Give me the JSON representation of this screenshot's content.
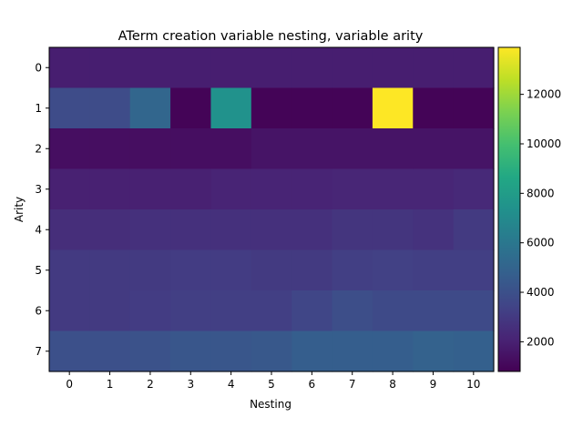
{
  "chart_data": {
    "type": "heatmap",
    "title": "ATerm creation variable nesting, variable arity",
    "xlabel": "Nesting",
    "ylabel": "Arity",
    "x_categories": [
      "0",
      "1",
      "2",
      "3",
      "4",
      "5",
      "6",
      "7",
      "8",
      "9",
      "10"
    ],
    "y_categories": [
      "0",
      "1",
      "2",
      "3",
      "4",
      "5",
      "6",
      "7"
    ],
    "values": [
      [
        1900,
        1900,
        1900,
        1900,
        1900,
        1900,
        1900,
        1900,
        1900,
        1900,
        1900
      ],
      [
        3800,
        3800,
        5100,
        900,
        7400,
        900,
        900,
        900,
        13900,
        900,
        900
      ],
      [
        1300,
        1300,
        1300,
        1300,
        1300,
        1500,
        1500,
        1500,
        1500,
        1500,
        1500
      ],
      [
        2000,
        2000,
        2000,
        2000,
        2100,
        2100,
        2100,
        2200,
        2200,
        2200,
        2300
      ],
      [
        2500,
        2500,
        2600,
        2600,
        2600,
        2600,
        2600,
        2800,
        2800,
        2700,
        3000
      ],
      [
        3000,
        3000,
        3000,
        3100,
        3100,
        3000,
        3000,
        3200,
        3300,
        3200,
        3200
      ],
      [
        3000,
        3000,
        3100,
        3200,
        3200,
        3200,
        3500,
        3900,
        3700,
        3700,
        3700
      ],
      [
        4000,
        4000,
        4100,
        4300,
        4300,
        4400,
        4700,
        4700,
        4700,
        4900,
        4800
      ]
    ],
    "colorbar": {
      "min": 800,
      "max": 13900,
      "ticks": [
        "2000",
        "4000",
        "6000",
        "8000",
        "10000",
        "12000"
      ]
    },
    "colormap": "viridis",
    "grid": false
  }
}
